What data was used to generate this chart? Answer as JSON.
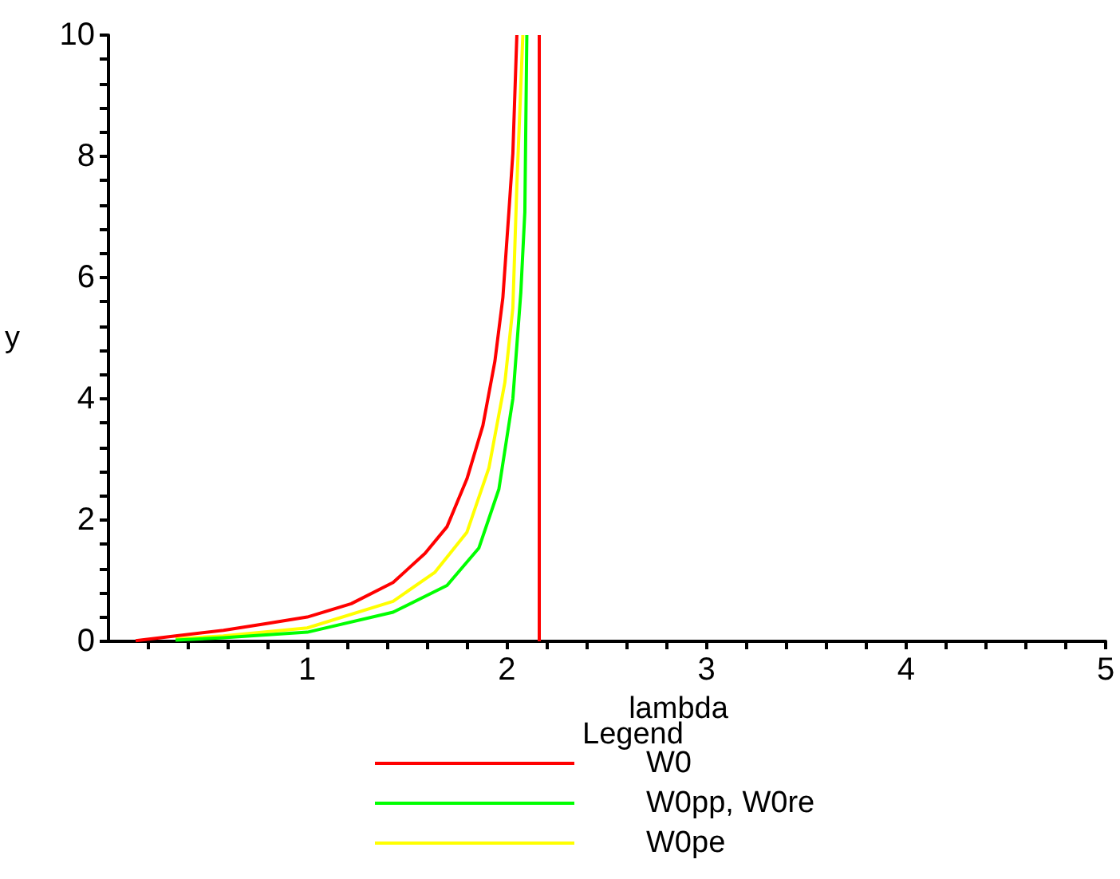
{
  "chart_data": {
    "type": "line",
    "xlabel": "lambda",
    "ylabel": "y",
    "legend_title": "Legend",
    "legend": "bottom",
    "grid": false,
    "marker": "none",
    "line_style": "solid",
    "xlim": [
      0,
      5
    ],
    "ylim": [
      0,
      10
    ],
    "xticks": [
      {
        "value": 0.2,
        "label": null
      },
      {
        "value": 0.4,
        "label": null
      },
      {
        "value": 0.6,
        "label": null
      },
      {
        "value": 0.8,
        "label": null
      },
      1,
      {
        "value": 1.2,
        "label": null
      },
      {
        "value": 1.4,
        "label": null
      },
      {
        "value": 1.6,
        "label": null
      },
      {
        "value": 1.8,
        "label": null
      },
      2,
      {
        "value": 2.2,
        "label": null
      },
      {
        "value": 2.4,
        "label": null
      },
      {
        "value": 2.6,
        "label": null
      },
      {
        "value": 2.8,
        "label": null
      },
      3,
      {
        "value": 3.2,
        "label": null
      },
      {
        "value": 3.4,
        "label": null
      },
      {
        "value": 3.6,
        "label": null
      },
      {
        "value": 3.8,
        "label": null
      },
      4,
      {
        "value": 4.2,
        "label": null
      },
      {
        "value": 4.4,
        "label": null
      },
      {
        "value": 4.6,
        "label": null
      },
      {
        "value": 4.8,
        "label": null
      },
      5
    ],
    "yticks": [
      0,
      {
        "value": 0.4,
        "label": null
      },
      {
        "value": 0.8,
        "label": null
      },
      {
        "value": 1.2,
        "label": null
      },
      {
        "value": 1.6,
        "label": null
      },
      2,
      {
        "value": 2.4,
        "label": null
      },
      {
        "value": 2.8,
        "label": null
      },
      {
        "value": 3.2,
        "label": null
      },
      {
        "value": 3.6,
        "label": null
      },
      4,
      {
        "value": 4.4,
        "label": null
      },
      {
        "value": 4.8,
        "label": null
      },
      {
        "value": 5.2,
        "label": null
      },
      {
        "value": 5.6,
        "label": null
      },
      6,
      {
        "value": 6.4,
        "label": null
      },
      {
        "value": 6.8,
        "label": null
      },
      {
        "value": 7.2,
        "label": null
      },
      {
        "value": 7.6,
        "label": null
      },
      8,
      {
        "value": 8.4,
        "label": null
      },
      {
        "value": 8.8,
        "label": null
      },
      {
        "value": 9.2,
        "label": null
      },
      {
        "value": 9.6,
        "label": null
      },
      10
    ],
    "series": [
      {
        "name": "W0",
        "color": "#ff0000",
        "x": [
          0.14,
          0.34,
          0.58,
          0.79,
          1.0,
          1.22,
          1.43,
          1.59,
          1.7,
          1.8,
          1.88,
          1.94,
          1.98,
          2.01,
          2.03,
          2.05
        ],
        "values": [
          0.01,
          0.09,
          0.18,
          0.29,
          0.4,
          0.62,
          0.97,
          1.45,
          1.89,
          2.68,
          3.56,
          4.62,
          5.67,
          7.08,
          8.05,
          10
        ]
      },
      {
        "name": "W0pp, W0re",
        "color": "#00ff00",
        "x": [
          0.34,
          0.58,
          1.0,
          1.43,
          1.7,
          1.86,
          1.96,
          2.03,
          2.07,
          2.09,
          2.1
        ],
        "values": [
          0.02,
          0.06,
          0.15,
          0.48,
          0.92,
          1.54,
          2.51,
          4.0,
          5.76,
          7.08,
          10
        ]
      },
      {
        "name": "W0pe",
        "color": "#ffff00",
        "x": [
          0.34,
          0.58,
          1.0,
          1.43,
          1.64,
          1.8,
          1.91,
          1.99,
          2.03,
          2.05,
          2.08
        ],
        "values": [
          0.04,
          0.09,
          0.22,
          0.66,
          1.14,
          1.8,
          2.86,
          4.27,
          5.5,
          7.52,
          10
        ]
      }
    ],
    "ref_lines": [
      {
        "axis": "x",
        "value": 2.16,
        "color": "#ff0000"
      }
    ]
  }
}
